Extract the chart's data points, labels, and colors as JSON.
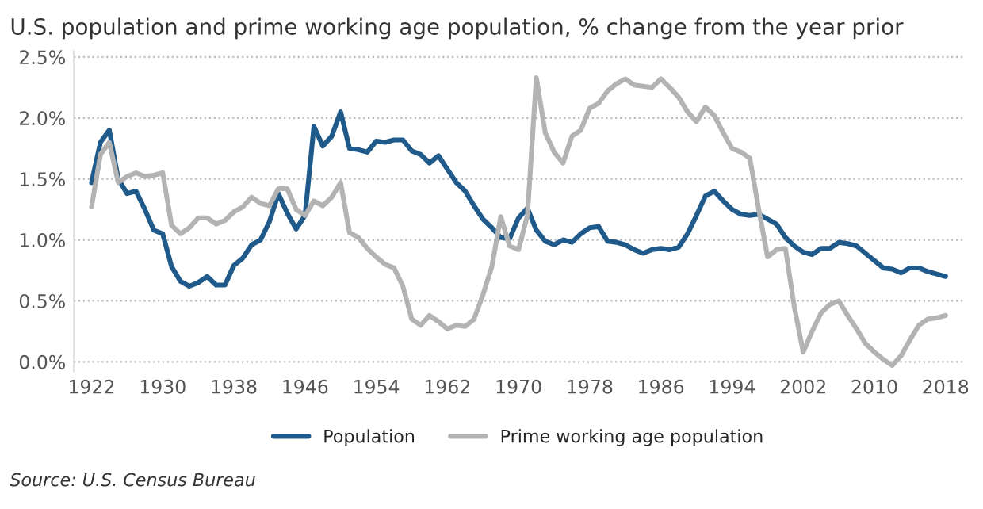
{
  "chart_data": {
    "type": "line",
    "title": "U.S. population and prime working age population, % change from the year prior",
    "x": [
      1922,
      1923,
      1924,
      1925,
      1926,
      1927,
      1928,
      1929,
      1930,
      1931,
      1932,
      1933,
      1934,
      1935,
      1936,
      1937,
      1938,
      1939,
      1940,
      1941,
      1942,
      1943,
      1944,
      1945,
      1946,
      1947,
      1948,
      1949,
      1950,
      1951,
      1952,
      1953,
      1954,
      1955,
      1956,
      1957,
      1958,
      1959,
      1960,
      1961,
      1962,
      1963,
      1964,
      1965,
      1966,
      1967,
      1968,
      1969,
      1970,
      1971,
      1972,
      1973,
      1974,
      1975,
      1976,
      1977,
      1978,
      1979,
      1980,
      1981,
      1982,
      1983,
      1984,
      1985,
      1986,
      1987,
      1988,
      1989,
      1990,
      1991,
      1992,
      1993,
      1994,
      1995,
      1996,
      1997,
      1998,
      1999,
      2000,
      2001,
      2002,
      2003,
      2004,
      2005,
      2006,
      2007,
      2008,
      2009,
      2010,
      2011,
      2012,
      2013,
      2014,
      2015,
      2016,
      2017,
      2018
    ],
    "series": [
      {
        "name": "Population",
        "color": "#1f5a8a",
        "values": [
          1.47,
          1.8,
          1.9,
          1.5,
          1.38,
          1.4,
          1.25,
          1.08,
          1.05,
          0.78,
          0.66,
          0.62,
          0.65,
          0.7,
          0.63,
          0.63,
          0.79,
          0.85,
          0.96,
          1.0,
          1.15,
          1.38,
          1.22,
          1.09,
          1.2,
          1.93,
          1.77,
          1.85,
          2.05,
          1.75,
          1.74,
          1.72,
          1.81,
          1.8,
          1.82,
          1.82,
          1.73,
          1.7,
          1.63,
          1.69,
          1.58,
          1.47,
          1.4,
          1.28,
          1.17,
          1.1,
          1.02,
          1.01,
          1.18,
          1.26,
          1.08,
          0.99,
          0.96,
          1.0,
          0.98,
          1.05,
          1.1,
          1.11,
          0.99,
          0.98,
          0.96,
          0.92,
          0.89,
          0.92,
          0.93,
          0.92,
          0.94,
          1.05,
          1.2,
          1.36,
          1.4,
          1.32,
          1.25,
          1.21,
          1.2,
          1.21,
          1.17,
          1.13,
          1.02,
          0.95,
          0.9,
          0.88,
          0.93,
          0.93,
          0.98,
          0.97,
          0.95,
          0.89,
          0.83,
          0.77,
          0.76,
          0.73,
          0.77,
          0.77,
          0.74,
          0.72,
          0.7
        ]
      },
      {
        "name": "Prime working age population",
        "color": "#b3b3b3",
        "values": [
          1.27,
          1.7,
          1.8,
          1.47,
          1.52,
          1.55,
          1.52,
          1.53,
          1.55,
          1.12,
          1.05,
          1.1,
          1.18,
          1.18,
          1.13,
          1.16,
          1.23,
          1.27,
          1.35,
          1.3,
          1.28,
          1.42,
          1.42,
          1.25,
          1.2,
          1.32,
          1.28,
          1.35,
          1.47,
          1.06,
          1.02,
          0.93,
          0.86,
          0.8,
          0.77,
          0.62,
          0.35,
          0.3,
          0.38,
          0.33,
          0.27,
          0.3,
          0.29,
          0.35,
          0.55,
          0.78,
          1.19,
          0.95,
          0.92,
          1.2,
          2.33,
          1.88,
          1.72,
          1.63,
          1.85,
          1.9,
          2.08,
          2.12,
          2.22,
          2.28,
          2.32,
          2.27,
          2.26,
          2.25,
          2.32,
          2.25,
          2.17,
          2.05,
          1.97,
          2.09,
          2.02,
          1.88,
          1.75,
          1.72,
          1.67,
          1.25,
          0.86,
          0.92,
          0.93,
          0.45,
          0.08,
          0.25,
          0.4,
          0.47,
          0.5,
          0.38,
          0.27,
          0.15,
          0.08,
          0.02,
          -0.03,
          0.05,
          0.18,
          0.3,
          0.35,
          0.36,
          0.38
        ]
      }
    ],
    "xlim": [
      1920,
      2020
    ],
    "xticks": [
      1922,
      1930,
      1938,
      1946,
      1954,
      1962,
      1970,
      1978,
      1986,
      1994,
      2002,
      2010,
      2018
    ],
    "ylim": [
      -0.08,
      2.55
    ],
    "yticks": [
      {
        "value": 0,
        "label": "0.0%"
      },
      {
        "value": 0.5,
        "label": "0.5%"
      },
      {
        "value": 1,
        "label": "1.0%"
      },
      {
        "value": 1.5,
        "label": "1.5%"
      },
      {
        "value": 2,
        "label": "2.0%"
      },
      {
        "value": 2.5,
        "label": "2.5%"
      }
    ],
    "grid": "y",
    "legend": "bottom",
    "marker": "none",
    "line_style": "solid",
    "annotations": [
      "Source: U.S. Census Bureau"
    ]
  }
}
